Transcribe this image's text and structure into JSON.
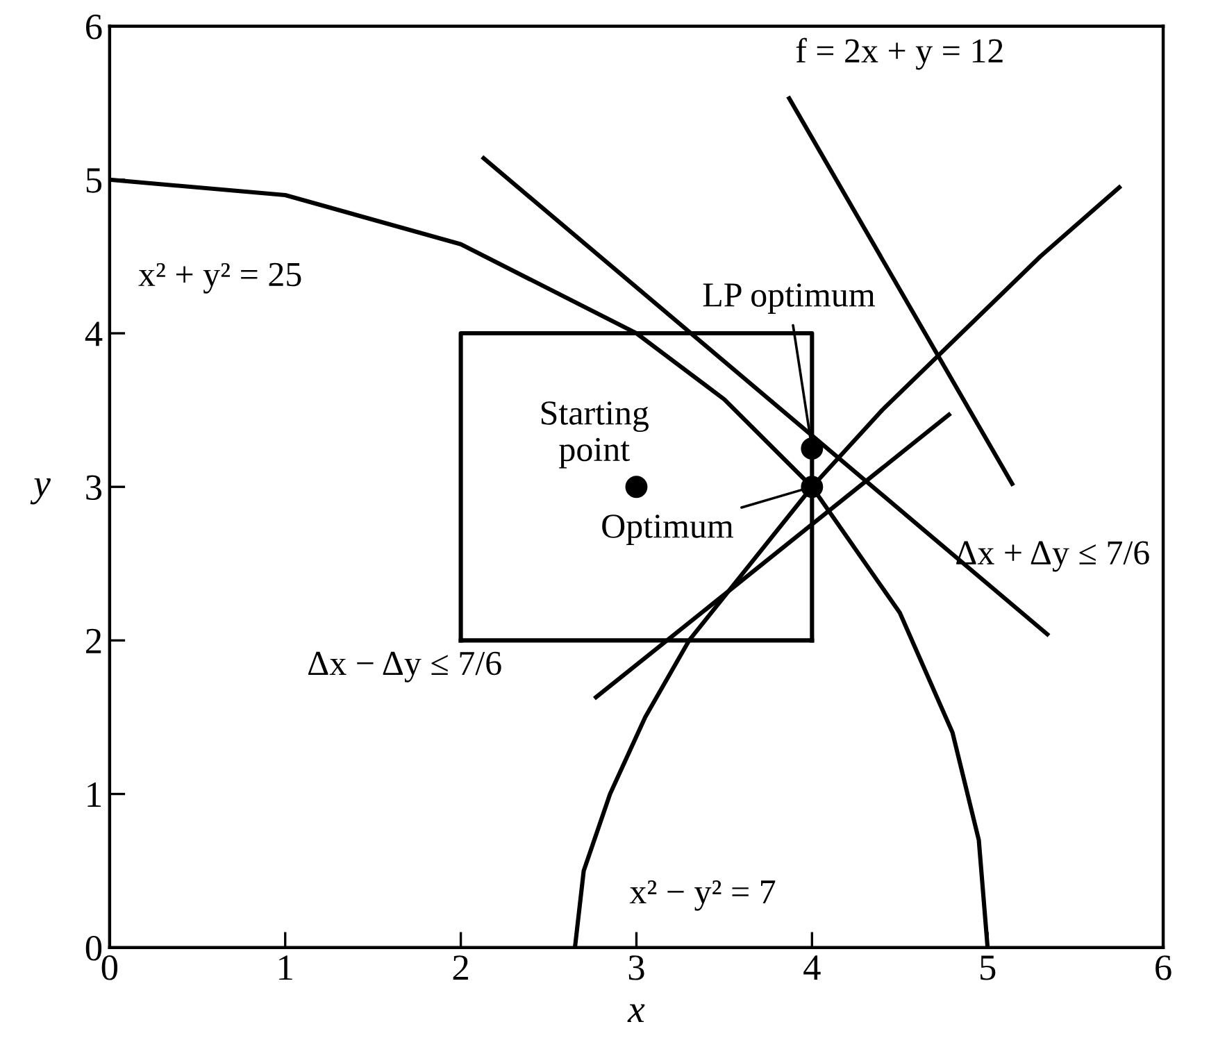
{
  "chart_data": {
    "type": "line",
    "xlabel": "x",
    "ylabel": "y",
    "xlim": [
      0,
      6
    ],
    "ylim": [
      0,
      6
    ],
    "xticks": [
      0,
      1,
      2,
      3,
      4,
      5,
      6
    ],
    "yticks": [
      0,
      1,
      2,
      3,
      4,
      5,
      6
    ],
    "grid": false,
    "legend": false,
    "line_style": "solid",
    "marker": "none",
    "series": [
      {
        "color": "#000000",
        "x": [
          0,
          1,
          2,
          3,
          3.5,
          4,
          4.5,
          4.8,
          4.95,
          5
        ],
        "values": [
          5,
          4.9,
          4.58,
          4.0,
          3.57,
          3.0,
          2.18,
          1.4,
          0.7,
          0
        ]
      },
      {
        "color": "#000000",
        "x": [
          2.65,
          2.7,
          2.85,
          3.05,
          3.3,
          3.65,
          4.0,
          4.4,
          4.85,
          5.3,
          5.75
        ],
        "values": [
          0,
          0.5,
          1.0,
          1.5,
          2.0,
          2.5,
          3.0,
          3.5,
          4.0,
          4.5,
          4.95
        ]
      },
      {
        "color": "#000000",
        "x": [
          2.13,
          5.34
        ],
        "values": [
          5.14,
          2.04
        ]
      },
      {
        "color": "#000000",
        "x": [
          2.77,
          4.78
        ],
        "values": [
          1.63,
          3.47
        ]
      },
      {
        "color": "#000000",
        "x": [
          3.87,
          5.14
        ],
        "values": [
          5.53,
          3.02
        ]
      },
      {
        "color": "#000000",
        "x": [
          2,
          2,
          4,
          4
        ],
        "values": [
          2,
          4,
          4,
          2
        ]
      },
      {
        "color": "#000000",
        "x": [
          2,
          4
        ],
        "values": [
          2,
          2
        ]
      },
      {
        "type": "scatter",
        "marker": "circle",
        "color": "#000000",
        "x": [
          3,
          4,
          4
        ],
        "values": [
          3,
          3.25,
          3
        ]
      }
    ],
    "annotations": [
      "x² + y² = 25",
      "f = 2x + y = 12",
      "Δx + Δy ≤ 7/6",
      "Δx − Δy ≤ 7/6",
      "x² − y² = 7",
      "Starting\npoint",
      {
        "text": "LP optimum",
        "x": 4,
        "y": 3.25
      },
      {
        "text": "Optimum",
        "x": 4,
        "y": 3
      }
    ]
  }
}
